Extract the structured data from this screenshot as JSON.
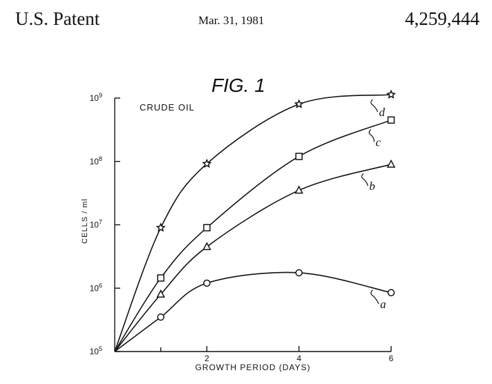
{
  "header": {
    "left": "U.S. Patent",
    "date": "Mar. 31, 1981",
    "number": "4,259,444"
  },
  "figure": {
    "title": "FIG. 1",
    "annotation": "CRUDE OIL"
  },
  "chart_data": {
    "type": "line",
    "title": "FIG. 1",
    "xlabel": "GROWTH PERIOD (DAYS)",
    "ylabel": "CELLS / ml",
    "xlim": [
      0,
      6
    ],
    "ylim": [
      100000,
      1000000000
    ],
    "yscale": "log",
    "x_ticks": [
      2,
      4,
      6
    ],
    "y_ticks": [
      {
        "value": 100000,
        "label": "10",
        "exp": "5"
      },
      {
        "value": 1000000,
        "label": "10",
        "exp": "6"
      },
      {
        "value": 10000000,
        "label": "10",
        "exp": "7"
      },
      {
        "value": 100000000,
        "label": "10",
        "exp": "8"
      },
      {
        "value": 1000000000,
        "label": "10",
        "exp": "9"
      }
    ],
    "grid": false,
    "series": [
      {
        "name": "a",
        "marker": "circle",
        "points": [
          [
            0,
            100000
          ],
          [
            1,
            350000
          ],
          [
            2,
            1200000
          ],
          [
            4,
            1750000
          ],
          [
            6,
            850000
          ]
        ]
      },
      {
        "name": "b",
        "marker": "triangle",
        "points": [
          [
            0,
            100000
          ],
          [
            1,
            800000
          ],
          [
            2,
            4500000
          ],
          [
            4,
            35000000
          ],
          [
            6,
            90000000
          ]
        ]
      },
      {
        "name": "c",
        "marker": "square",
        "points": [
          [
            0,
            100000
          ],
          [
            1,
            1450000
          ],
          [
            2,
            9000000
          ],
          [
            4,
            120000000
          ],
          [
            6,
            450000000
          ]
        ]
      },
      {
        "name": "d",
        "marker": "star",
        "points": [
          [
            0,
            100000
          ],
          [
            1,
            9000000
          ],
          [
            2,
            92000000
          ],
          [
            4,
            800000000
          ],
          [
            6,
            2000000000
          ]
        ]
      }
    ]
  }
}
